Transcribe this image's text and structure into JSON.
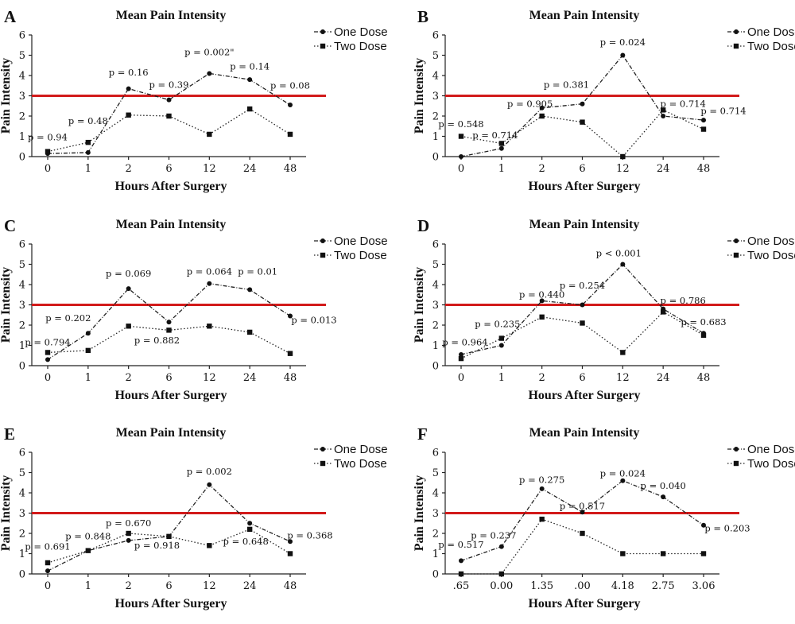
{
  "chart_data": [
    {
      "type": "line",
      "panel": "A",
      "title": "Mean Pain Intensity",
      "xlabel": "Hours After Surgery",
      "ylabel": "Pain Intensity",
      "ylim": [
        0,
        6
      ],
      "yticks": [
        "0",
        "1",
        "2",
        "3",
        "4",
        "5",
        "6"
      ],
      "categories": [
        "0",
        "1",
        "2",
        "6",
        "12",
        "24",
        "48"
      ],
      "threshold": 3,
      "legend_position": "top-right",
      "series": [
        {
          "name": "One Dose",
          "marker": "circle",
          "line": "dashdot",
          "values": [
            0.15,
            0.2,
            3.35,
            2.8,
            4.1,
            3.8,
            2.55
          ]
        },
        {
          "name": "Two Dose",
          "marker": "square",
          "line": "dotted",
          "values": [
            0.25,
            0.7,
            2.05,
            2.0,
            1.1,
            2.35,
            1.1
          ]
        }
      ],
      "annotations": [
        {
          "text": "p = 0.94",
          "cat": 0,
          "y": 0.8,
          "dx": 0
        },
        {
          "text": "p = 0.48",
          "cat": 1,
          "y": 1.6,
          "dx": 0
        },
        {
          "text": "p = 0.16",
          "cat": 2,
          "y": 4.0,
          "dx": 0
        },
        {
          "text": "p = 0.39",
          "cat": 3,
          "y": 3.4,
          "dx": 0
        },
        {
          "text": "p = 0.002\"",
          "cat": 4,
          "y": 5.0,
          "dx": 0
        },
        {
          "text": "p = 0.14",
          "cat": 5,
          "y": 4.3,
          "dx": 0
        },
        {
          "text": "p = 0.08",
          "cat": 6,
          "y": 3.35,
          "dx": 0
        }
      ]
    },
    {
      "type": "line",
      "panel": "B",
      "title": "Mean Pain Intensity",
      "xlabel": "Hours After Surgery",
      "ylabel": "Pain Intensity",
      "ylim": [
        0,
        6
      ],
      "yticks": [
        "0",
        "1",
        "2",
        "3",
        "4",
        "5",
        "6"
      ],
      "categories": [
        "0",
        "1",
        "2",
        "6",
        "12",
        "24",
        "48"
      ],
      "threshold": 3,
      "legend_position": "top-right",
      "series": [
        {
          "name": "One Dose",
          "marker": "circle",
          "line": "dashdot",
          "values": [
            0.0,
            0.4,
            2.4,
            2.6,
            5.0,
            2.0,
            1.8
          ]
        },
        {
          "name": "Two Dose",
          "marker": "square",
          "line": "dotted",
          "values": [
            1.0,
            0.65,
            2.0,
            1.7,
            0.0,
            2.3,
            1.35
          ]
        }
      ],
      "annotations": [
        {
          "text": "p = 0.548",
          "cat": 0,
          "y": 1.45,
          "dx": 0
        },
        {
          "text": "p = 0.714",
          "cat": 1,
          "y": 0.9,
          "dx": -8
        },
        {
          "text": "p = 0.905",
          "cat": 2,
          "y": 2.45,
          "dx": -15
        },
        {
          "text": "p = 0.381",
          "cat": 3,
          "y": 3.4,
          "dx": -20
        },
        {
          "text": "p = 0.024",
          "cat": 4,
          "y": 5.5,
          "dx": 0
        },
        {
          "text": "p = 0.714",
          "cat": 5,
          "y": 2.45,
          "dx": 25
        },
        {
          "text": "p = 0.714",
          "cat": 6,
          "y": 2.1,
          "dx": 25
        }
      ]
    },
    {
      "type": "line",
      "panel": "C",
      "title": "Mean Pain Intensity",
      "xlabel": "Hours After Surgery",
      "ylabel": "Pain Intensity",
      "ylim": [
        0,
        6
      ],
      "yticks": [
        "0",
        "1",
        "2",
        "3",
        "4",
        "5",
        "6"
      ],
      "categories": [
        "0",
        "1",
        "2",
        "6",
        "12",
        "24",
        "48"
      ],
      "threshold": 3,
      "legend_position": "top-right",
      "series": [
        {
          "name": "One Dose",
          "marker": "circle",
          "line": "dashdot",
          "values": [
            0.3,
            1.6,
            3.8,
            2.15,
            4.05,
            3.75,
            2.45
          ]
        },
        {
          "name": "Two Dose",
          "marker": "square",
          "line": "dotted",
          "values": [
            0.65,
            0.75,
            1.95,
            1.75,
            1.95,
            1.65,
            0.6
          ]
        }
      ],
      "annotations": [
        {
          "text": "p = 0.794",
          "cat": 0,
          "y": 1.0,
          "dx": 0
        },
        {
          "text": "p = 0.202",
          "cat": 1,
          "y": 2.2,
          "dx": -25
        },
        {
          "text": "p = 0.069",
          "cat": 2,
          "y": 4.4,
          "dx": 0
        },
        {
          "text": "p = 0.882",
          "cat": 3,
          "y": 1.1,
          "dx": -15
        },
        {
          "text": "p = 0.064",
          "cat": 4,
          "y": 4.5,
          "dx": 0
        },
        {
          "text": "p = 0.01",
          "cat": 5,
          "y": 4.5,
          "dx": 10
        },
        {
          "text": "p = 0.013",
          "cat": 6,
          "y": 2.1,
          "dx": 30
        }
      ]
    },
    {
      "type": "line",
      "panel": "D",
      "title": "Mean Pain Intensity",
      "xlabel": "Hours After Surgery",
      "ylabel": "Pain Intensity",
      "ylim": [
        0,
        6
      ],
      "yticks": [
        "0",
        "1",
        "2",
        "3",
        "4",
        "5",
        "6"
      ],
      "categories": [
        "0",
        "1",
        "2",
        "6",
        "12",
        "24",
        "48"
      ],
      "threshold": 3,
      "legend_position": "top-right",
      "series": [
        {
          "name": "One Dose",
          "marker": "circle",
          "line": "dashdot",
          "values": [
            0.55,
            1.0,
            3.2,
            3.0,
            5.0,
            2.8,
            1.6
          ]
        },
        {
          "name": "Two Dose",
          "marker": "square",
          "line": "dotted",
          "values": [
            0.35,
            1.35,
            2.4,
            2.1,
            0.65,
            2.65,
            1.5
          ]
        }
      ],
      "annotations": [
        {
          "text": "p = 0.964",
          "cat": 0,
          "y": 1.0,
          "dx": 5
        },
        {
          "text": "p = 0.235",
          "cat": 1,
          "y": 1.9,
          "dx": -5
        },
        {
          "text": "p = 0.440",
          "cat": 2,
          "y": 3.35,
          "dx": 0
        },
        {
          "text": "p = 0.254",
          "cat": 3,
          "y": 3.8,
          "dx": 0
        },
        {
          "text": "p < 0.001",
          "cat": 4,
          "y": 5.4,
          "dx": -5
        },
        {
          "text": "p = 0.786",
          "cat": 5,
          "y": 3.05,
          "dx": 25
        },
        {
          "text": "p = 0.683",
          "cat": 6,
          "y": 2.0,
          "dx": 0
        }
      ]
    },
    {
      "type": "line",
      "panel": "E",
      "title": "Mean Pain Intensity",
      "xlabel": "Hours After Surgery",
      "ylabel": "Pain Intensity",
      "ylim": [
        0,
        6
      ],
      "yticks": [
        "0",
        "1",
        "2",
        "3",
        "4",
        "5",
        "6"
      ],
      "categories": [
        "0",
        "1",
        "2",
        "6",
        "12",
        "24",
        "48"
      ],
      "threshold": 3,
      "legend_position": "top-right",
      "series": [
        {
          "name": "One Dose",
          "marker": "circle",
          "line": "dashdot",
          "values": [
            0.15,
            1.15,
            1.65,
            1.85,
            4.4,
            2.5,
            1.6
          ]
        },
        {
          "name": "Two Dose",
          "marker": "square",
          "line": "dotted",
          "values": [
            0.55,
            1.15,
            2.0,
            1.85,
            1.4,
            2.2,
            1.0
          ]
        }
      ],
      "annotations": [
        {
          "text": "p = 0.691",
          "cat": 0,
          "y": 1.2,
          "dx": 0
        },
        {
          "text": "p = 0.848",
          "cat": 1,
          "y": 1.7,
          "dx": 0
        },
        {
          "text": "p = 0.670",
          "cat": 2,
          "y": 2.35,
          "dx": 0
        },
        {
          "text": "p = 0.918",
          "cat": 3,
          "y": 1.25,
          "dx": -15
        },
        {
          "text": "p = 0.002",
          "cat": 4,
          "y": 4.9,
          "dx": 0
        },
        {
          "text": "p = 0.648",
          "cat": 5,
          "y": 1.45,
          "dx": -5
        },
        {
          "text": "p = 0.368",
          "cat": 6,
          "y": 1.75,
          "dx": 25
        }
      ]
    },
    {
      "type": "line",
      "panel": "F",
      "title": "Mean Pain Intensity",
      "xlabel": "Hours After Surgery",
      "ylabel": "Pain Intensity",
      "ylim": [
        0,
        6
      ],
      "yticks": [
        "0",
        "1",
        "2",
        "3",
        "4",
        "5",
        "6"
      ],
      "categories": [
        ".65",
        "0.00",
        "1.35",
        ".00",
        "4.18",
        "2.75",
        "3.06"
      ],
      "threshold": 3,
      "legend_position": "top-right",
      "series": [
        {
          "name": "One Dose",
          "marker": "circle",
          "line": "dashdot",
          "values": [
            0.65,
            1.35,
            4.2,
            3.05,
            4.6,
            3.8,
            2.4
          ]
        },
        {
          "name": "Two Dose",
          "marker": "square",
          "line": "dotted",
          "values": [
            0.0,
            0.0,
            2.7,
            2.0,
            1.0,
            1.0,
            1.0
          ]
        }
      ],
      "annotations": [
        {
          "text": "p = 0.517",
          "cat": 0,
          "y": 1.3,
          "dx": 0
        },
        {
          "text": "p = 0.237",
          "cat": 1,
          "y": 1.75,
          "dx": -10
        },
        {
          "text": "p = 0.275",
          "cat": 2,
          "y": 4.5,
          "dx": 0
        },
        {
          "text": "p = 0.517",
          "cat": 3,
          "y": 3.2,
          "dx": 0
        },
        {
          "text": "p = 0.024",
          "cat": 4,
          "y": 4.8,
          "dx": 0
        },
        {
          "text": "p = 0.040",
          "cat": 5,
          "y": 4.2,
          "dx": 0
        },
        {
          "text": "p = 0.203",
          "cat": 6,
          "y": 2.1,
          "dx": 30
        }
      ]
    }
  ]
}
